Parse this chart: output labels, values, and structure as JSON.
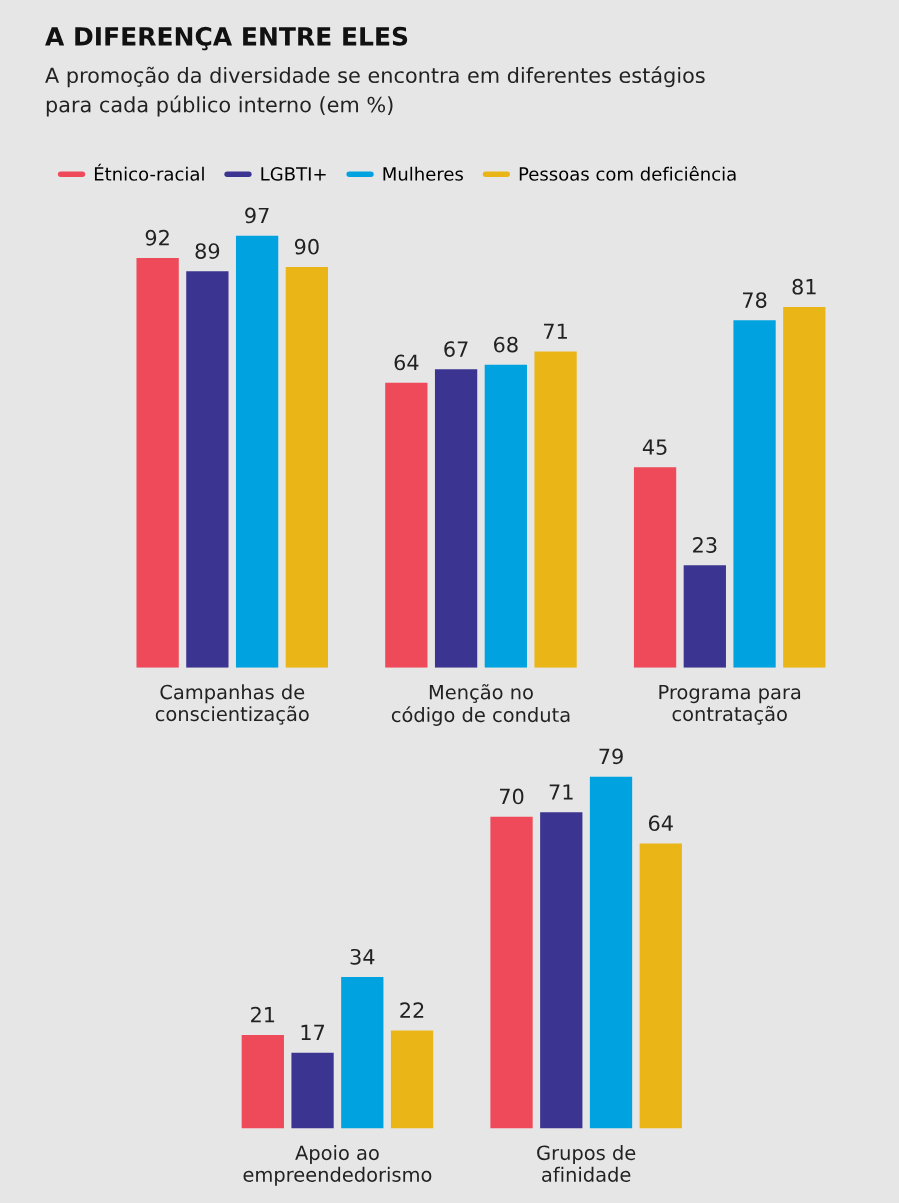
{
  "chart_data": [
    {
      "type": "bar",
      "title": "A DIFERENÇA ENTRE ELES",
      "subtitle": "A promoção da diversidade se encontra em diferentes estágios\npara cada público interno (em %)",
      "categories": [
        "Campanhas de\nconscientização",
        "Menção no\ncódigo de conduta",
        "Programa para\ncontratação"
      ],
      "series": [
        {
          "name": "Étnico-racial",
          "color": "#ee4a5a",
          "values": [
            92,
            64,
            45
          ]
        },
        {
          "name": "LGBTI+",
          "color": "#3b3591",
          "values": [
            89,
            67,
            23
          ]
        },
        {
          "name": "Mulheres",
          "color": "#00a3e0",
          "values": [
            97,
            68,
            78
          ]
        },
        {
          "name": "Pessoas com deficiência",
          "color": "#eab516",
          "values": [
            90,
            71,
            81
          ]
        }
      ],
      "data_labels": true,
      "legend": "top",
      "grid": false,
      "tick_labels": "x"
    },
    {
      "type": "bar",
      "categories": [
        "Apoio ao\nempreendedorismo",
        "Grupos de\nafinidade"
      ],
      "series": [
        {
          "color": "#ee4a5a",
          "values": [
            21,
            70
          ]
        },
        {
          "color": "#3b3591",
          "values": [
            17,
            71
          ]
        },
        {
          "color": "#00a3e0",
          "values": [
            34,
            79
          ]
        },
        {
          "color": "#eab516",
          "values": [
            22,
            64
          ]
        }
      ],
      "data_labels": true,
      "grid": false,
      "tick_labels": "x"
    }
  ]
}
